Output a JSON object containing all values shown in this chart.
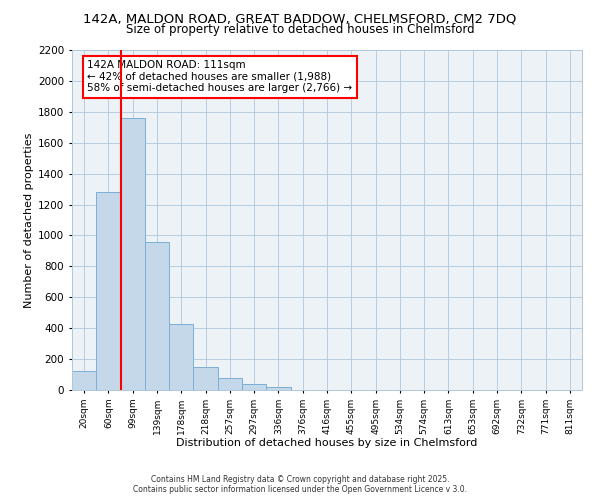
{
  "title1": "142A, MALDON ROAD, GREAT BADDOW, CHELMSFORD, CM2 7DQ",
  "title2": "Size of property relative to detached houses in Chelmsford",
  "xlabel": "Distribution of detached houses by size in Chelmsford",
  "ylabel": "Number of detached properties",
  "bar_color": "#c5d8ea",
  "bar_edge_color": "#7aafd4",
  "categories": [
    "20sqm",
    "60sqm",
    "99sqm",
    "139sqm",
    "178sqm",
    "218sqm",
    "257sqm",
    "297sqm",
    "336sqm",
    "376sqm",
    "416sqm",
    "455sqm",
    "495sqm",
    "534sqm",
    "574sqm",
    "613sqm",
    "653sqm",
    "692sqm",
    "732sqm",
    "771sqm",
    "811sqm"
  ],
  "values": [
    120,
    1280,
    1760,
    960,
    430,
    150,
    80,
    40,
    20,
    0,
    0,
    0,
    0,
    0,
    0,
    0,
    0,
    0,
    0,
    0,
    0
  ],
  "red_line_index": 2,
  "ylim": [
    0,
    2200
  ],
  "yticks": [
    0,
    200,
    400,
    600,
    800,
    1000,
    1200,
    1400,
    1600,
    1800,
    2000,
    2200
  ],
  "annotation_title": "142A MALDON ROAD: 111sqm",
  "annotation_line1": "← 42% of detached houses are smaller (1,988)",
  "annotation_line2": "58% of semi-detached houses are larger (2,766) →",
  "footer1": "Contains HM Land Registry data © Crown copyright and database right 2025.",
  "footer2": "Contains public sector information licensed under the Open Government Licence v 3.0.",
  "bg_color": "#edf2f7",
  "grid_color": "#b0c8dc",
  "title1_fontsize": 9.5,
  "title2_fontsize": 8.5,
  "ann_fontsize": 7.5,
  "xlabel_fontsize": 8,
  "ylabel_fontsize": 8,
  "footer_fontsize": 5.5
}
